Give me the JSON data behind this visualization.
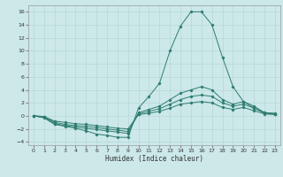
{
  "xlabel": "Humidex (Indice chaleur)",
  "background_color": "#cce8e8",
  "grid_color": "#b8d8d8",
  "line_color": "#2e7d6e",
  "xlim": [
    -0.5,
    23.5
  ],
  "ylim": [
    -4.5,
    17
  ],
  "xticks": [
    0,
    1,
    2,
    3,
    4,
    5,
    6,
    7,
    8,
    9,
    10,
    11,
    12,
    13,
    14,
    15,
    16,
    17,
    18,
    19,
    20,
    21,
    22,
    23
  ],
  "yticks": [
    -4,
    -2,
    0,
    2,
    4,
    6,
    8,
    10,
    12,
    14,
    16
  ],
  "series": [
    [
      0,
      -0.3,
      -1.3,
      -1.6,
      -1.9,
      -2.3,
      -2.8,
      -3.0,
      -3.3,
      -3.3,
      1.2,
      3.0,
      5.0,
      10.0,
      13.8,
      16.0,
      16.0,
      14.0,
      9.0,
      4.5,
      2.2,
      1.2,
      0.5,
      0.4
    ],
    [
      0,
      -0.2,
      -1.2,
      -1.5,
      -1.7,
      -1.9,
      -2.1,
      -2.3,
      -2.5,
      -2.7,
      0.5,
      1.0,
      1.5,
      2.5,
      3.5,
      4.0,
      4.5,
      4.0,
      2.5,
      1.8,
      2.2,
      1.5,
      0.5,
      0.3
    ],
    [
      0,
      -0.1,
      -1.0,
      -1.3,
      -1.5,
      -1.6,
      -1.8,
      -2.0,
      -2.2,
      -2.4,
      0.3,
      0.7,
      1.1,
      1.8,
      2.5,
      3.0,
      3.2,
      3.0,
      2.0,
      1.5,
      1.8,
      1.2,
      0.4,
      0.3
    ],
    [
      0,
      -0.1,
      -0.8,
      -1.0,
      -1.2,
      -1.3,
      -1.5,
      -1.7,
      -1.9,
      -2.0,
      0.2,
      0.4,
      0.7,
      1.2,
      1.8,
      2.0,
      2.2,
      2.0,
      1.3,
      1.0,
      1.3,
      0.8,
      0.3,
      0.2
    ]
  ]
}
